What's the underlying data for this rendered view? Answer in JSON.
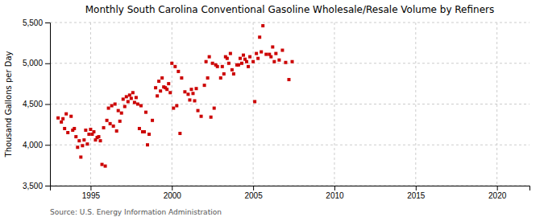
{
  "chart_data": {
    "type": "scatter",
    "title": "Monthly South Carolina Conventional Gasoline Wholesale/Resale Volume by Refiners",
    "ylabel": "Thousand Gallons per Day",
    "source": "Source: U.S. Energy Information Administration",
    "color": "#cc0000",
    "marker": "square",
    "grid": true,
    "xlim": [
      1992.5,
      2022
    ],
    "ylim": [
      3500,
      5500
    ],
    "xticks": [
      1995,
      2000,
      2005,
      2010,
      2015,
      2020
    ],
    "yticks": [
      {
        "value": 3500,
        "label": "3,500"
      },
      {
        "value": 4000,
        "label": "4,000"
      },
      {
        "value": 4500,
        "label": "4,500"
      },
      {
        "value": 5000,
        "label": "5,000"
      },
      {
        "value": 5500,
        "label": "5,500"
      }
    ],
    "x": [
      1993.0,
      1993.2,
      1993.4,
      1993.6,
      1993.8,
      1993.9,
      1993.5,
      1993.3,
      1994.1,
      1994.3,
      1994.5,
      1994.7,
      1994.9,
      1994.2,
      1994.4,
      1994.6,
      1994.8,
      1994.0,
      1995.0,
      1995.2,
      1995.4,
      1995.6,
      1995.8,
      1995.1,
      1995.3,
      1995.5,
      1995.7,
      1995.9,
      1996.0,
      1996.2,
      1996.4,
      1996.6,
      1996.8,
      1996.1,
      1996.3,
      1996.5,
      1996.7,
      1996.9,
      1997.0,
      1997.2,
      1997.4,
      1997.6,
      1997.8,
      1997.1,
      1997.3,
      1997.5,
      1997.7,
      1997.9,
      1998.0,
      1998.2,
      1998.4,
      1998.6,
      1998.8,
      1998.1,
      1998.3,
      1998.5,
      1999.0,
      1999.2,
      1999.4,
      1999.6,
      1999.8,
      1999.1,
      1999.3,
      1999.5,
      1999.7,
      1999.9,
      2000.0,
      2000.2,
      2000.4,
      2000.6,
      2000.8,
      2000.1,
      2000.3,
      2000.5,
      2001.0,
      2001.2,
      2001.4,
      2001.6,
      2001.8,
      2001.1,
      2001.3,
      2001.5,
      2002.0,
      2002.2,
      2002.4,
      2002.6,
      2002.8,
      2002.1,
      2002.3,
      2002.5,
      2002.7,
      2003.0,
      2003.2,
      2003.4,
      2003.6,
      2003.8,
      2003.1,
      2003.3,
      2003.5,
      2003.7,
      2004.0,
      2004.2,
      2004.4,
      2004.6,
      2004.8,
      2004.1,
      2004.3,
      2004.5,
      2004.7,
      2005.0,
      2005.2,
      2005.4,
      2005.6,
      2005.8,
      2005.1,
      2005.3,
      2005.5,
      2006.0,
      2006.2,
      2006.4,
      2006.6,
      2006.8,
      2006.1,
      2006.3,
      2007.0,
      2007.2,
      2007.4
    ],
    "values": [
      4330,
      4280,
      4200,
      4150,
      4350,
      4180,
      4380,
      4320,
      4100,
      4050,
      3990,
      4180,
      4130,
      3970,
      3850,
      4060,
      4010,
      4200,
      4190,
      4160,
      4090,
      4050,
      4210,
      4130,
      4060,
      4100,
      3760,
      3740,
      4300,
      4260,
      4230,
      4170,
      4290,
      4450,
      4480,
      4500,
      4420,
      4390,
      4560,
      4590,
      4610,
      4640,
      4580,
      4470,
      4530,
      4570,
      4520,
      4500,
      4200,
      4160,
      4400,
      4130,
      4300,
      4480,
      4160,
      4000,
      4700,
      4780,
      4820,
      4700,
      4750,
      4600,
      4660,
      4710,
      4680,
      4640,
      5000,
      4960,
      4900,
      4820,
      4650,
      4450,
      4480,
      4140,
      4620,
      4680,
      4540,
      4420,
      4350,
      4550,
      4630,
      4690,
      4730,
      4820,
      4340,
      4450,
      4960,
      5020,
      5080,
      5000,
      4980,
      4820,
      4870,
      5060,
      5120,
      4870,
      4960,
      5080,
      5000,
      4920,
      4980,
      5060,
      5100,
      5020,
      5080,
      4980,
      5000,
      5050,
      4960,
      5020,
      5120,
      5320,
      5460,
      5110,
      4530,
      5060,
      5140,
      5110,
      5200,
      5120,
      5040,
      5160,
      5080,
      5020,
      5010,
      4800,
      5020
    ]
  }
}
